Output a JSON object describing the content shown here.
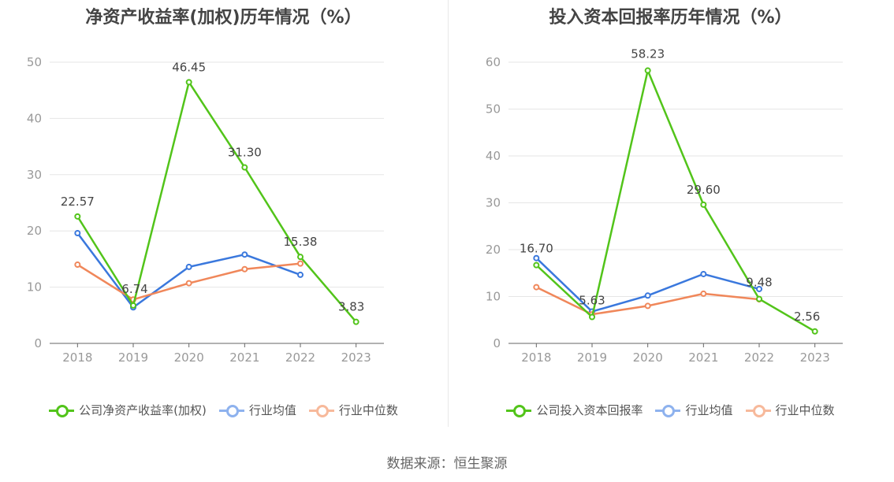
{
  "source": "数据来源：恒生聚源",
  "chart_data": [
    {
      "type": "line",
      "title": "净资产收益率(加权)历年情况（%）",
      "categories": [
        "2018",
        "2019",
        "2020",
        "2021",
        "2022",
        "2023"
      ],
      "ylim": [
        0,
        50
      ],
      "yticks": [
        0,
        10,
        20,
        30,
        40,
        50
      ],
      "series": [
        {
          "name": "公司净资产收益率(加权)",
          "color": "#52c41a",
          "values": [
            22.57,
            6.74,
            46.45,
            31.3,
            15.38,
            3.83
          ],
          "labels": [
            "22.57",
            "6.74",
            "46.45",
            "31.30",
            "15.38",
            "3.83"
          ]
        },
        {
          "name": "行业均值",
          "color": "#3a78dd",
          "legend_color": "#8eb2ee",
          "values": [
            19.6,
            6.4,
            13.6,
            15.8,
            12.2,
            null
          ]
        },
        {
          "name": "行业中位数",
          "color": "#f0875a",
          "legend_color": "#f7b99b",
          "values": [
            14.0,
            7.8,
            10.7,
            13.2,
            14.2,
            null
          ]
        }
      ]
    },
    {
      "type": "line",
      "title": "投入资本回报率历年情况（%）",
      "categories": [
        "2018",
        "2019",
        "2020",
        "2021",
        "2022",
        "2023"
      ],
      "ylim": [
        0,
        60
      ],
      "yticks": [
        0,
        10,
        20,
        30,
        40,
        50,
        60
      ],
      "series": [
        {
          "name": "公司投入资本回报率",
          "color": "#52c41a",
          "values": [
            16.7,
            5.63,
            58.23,
            29.6,
            9.48,
            2.56
          ],
          "labels": [
            "16.70",
            "5.63",
            "58.23",
            "29.60",
            "9.48",
            "2.56"
          ]
        },
        {
          "name": "行业均值",
          "color": "#3a78dd",
          "legend_color": "#8eb2ee",
          "values": [
            18.2,
            6.8,
            10.2,
            14.8,
            11.6,
            null
          ]
        },
        {
          "name": "行业中位数",
          "color": "#f0875a",
          "legend_color": "#f7b99b",
          "values": [
            12.0,
            6.2,
            8.0,
            10.6,
            9.4,
            null
          ]
        }
      ]
    }
  ]
}
